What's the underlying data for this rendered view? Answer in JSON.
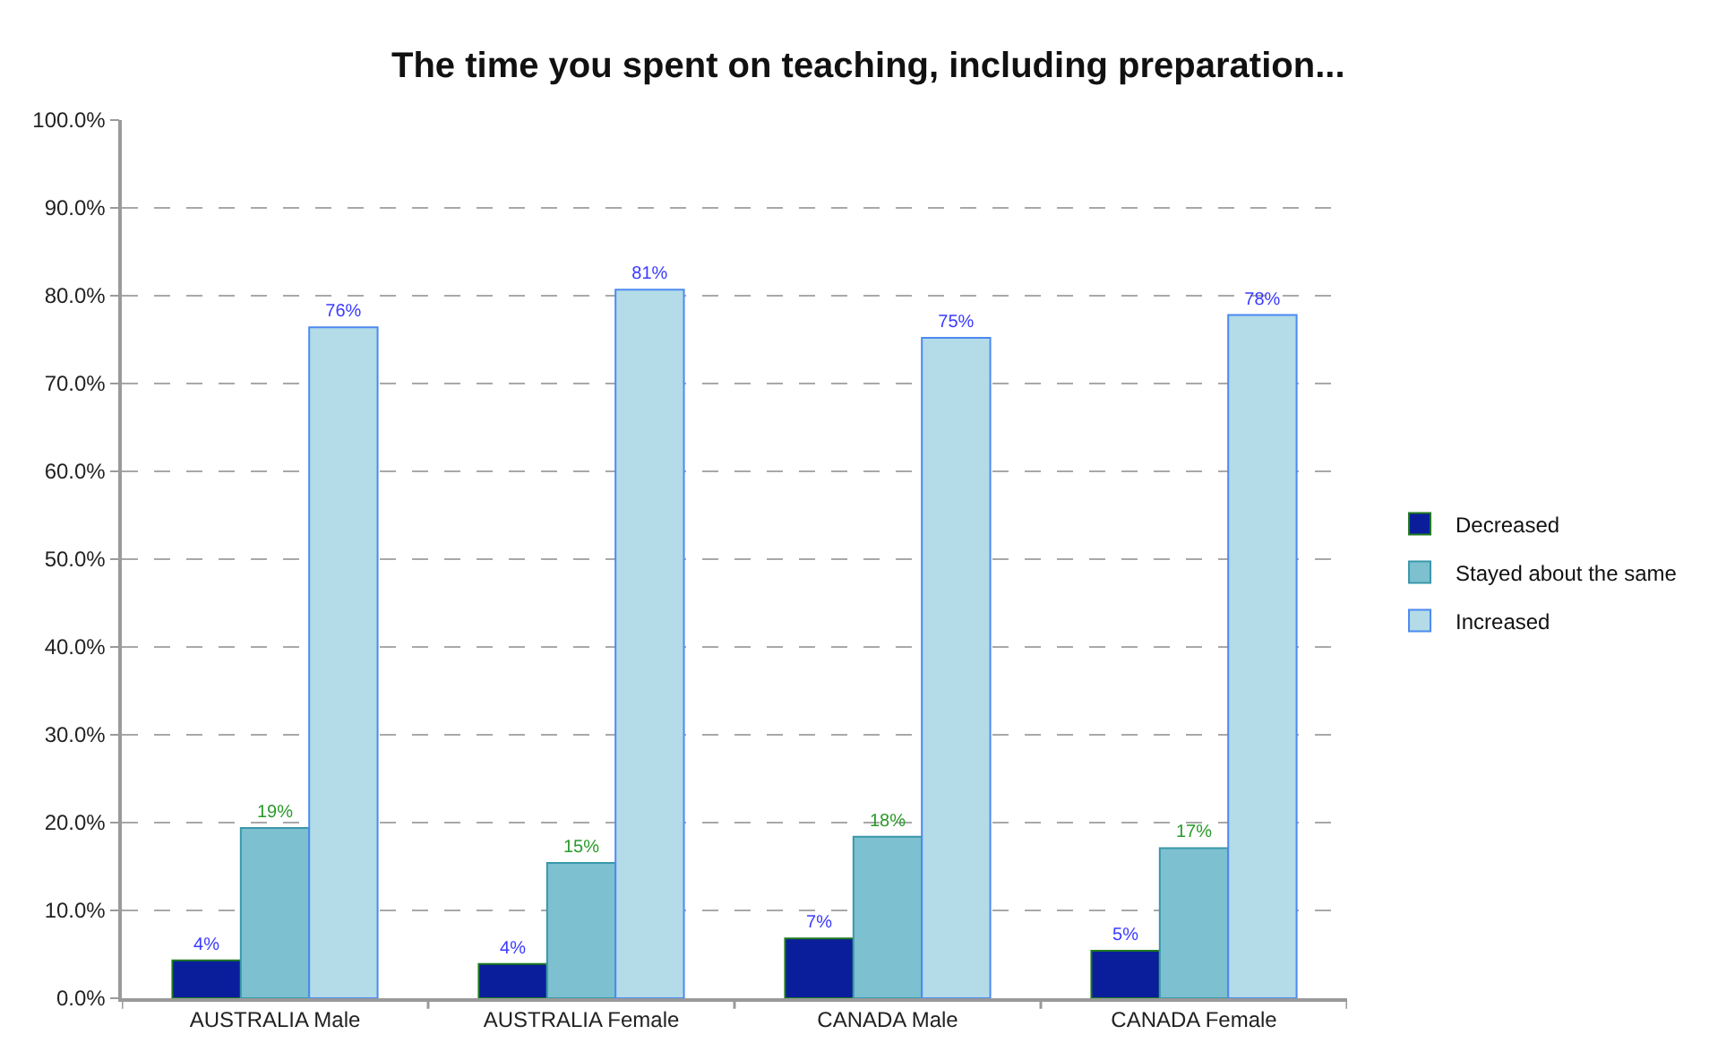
{
  "chart_data": {
    "type": "bar",
    "title": "The time you spent on teaching, including preparation...",
    "categories": [
      "AUSTRALIA Male",
      "AUSTRALIA Female",
      "CANADA Male",
      "CANADA Female"
    ],
    "series": [
      {
        "name": "Decreased",
        "color": "#0a1e9c",
        "values": [
          4.3,
          3.9,
          6.8,
          5.4
        ],
        "value_labels": [
          "4%",
          "4%",
          "7%",
          "5%"
        ]
      },
      {
        "name": "Stayed about the same",
        "color": "#7dc0cf",
        "values": [
          19.4,
          15.4,
          18.4,
          17.1
        ],
        "value_labels": [
          "19%",
          "15%",
          "18%",
          "17%"
        ]
      },
      {
        "name": "Increased",
        "color": "#b3dbe8",
        "values": [
          76.4,
          80.7,
          75.2,
          77.8
        ],
        "value_labels": [
          "76%",
          "81%",
          "75%",
          "78%"
        ]
      }
    ],
    "ylim": [
      0,
      100
    ],
    "yticks": [
      {
        "value": 0,
        "label": "0.0%"
      },
      {
        "value": 10,
        "label": "10.0%"
      },
      {
        "value": 20,
        "label": "20.0%"
      },
      {
        "value": 30,
        "label": "30.0%"
      },
      {
        "value": 40,
        "label": "40.0%"
      },
      {
        "value": 50,
        "label": "50.0%"
      },
      {
        "value": 60,
        "label": "60.0%"
      },
      {
        "value": 70,
        "label": "70.0%"
      },
      {
        "value": 80,
        "label": "80.0%"
      },
      {
        "value": 90,
        "label": "90.0%"
      },
      {
        "value": 100,
        "label": "100.0%"
      }
    ],
    "grid": "y",
    "legend": "right"
  }
}
